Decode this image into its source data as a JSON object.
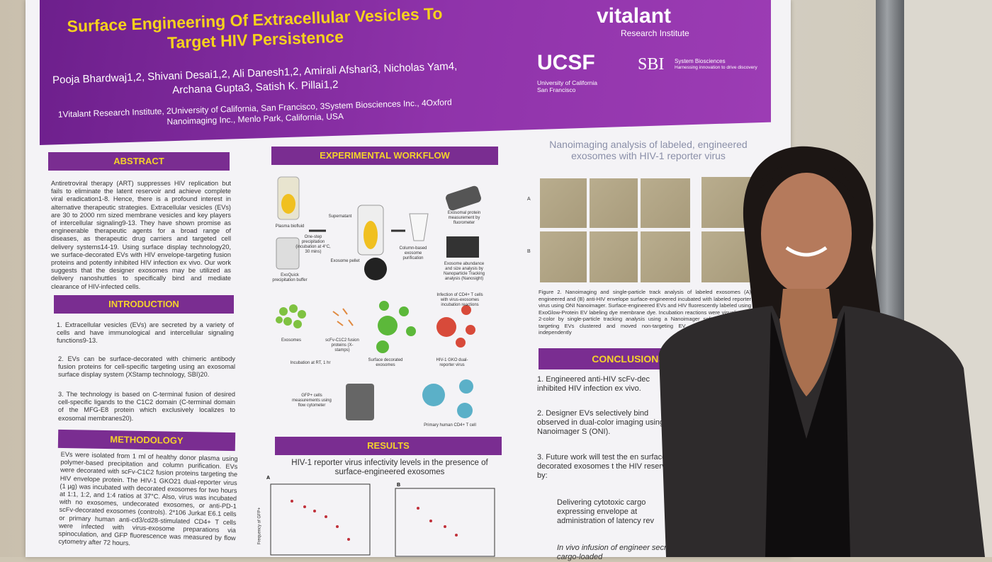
{
  "header": {
    "title": "Surface Engineering Of Extracellular Vesicles To Target HIV Persistence",
    "authors": "Pooja Bhardwaj1,2, Shivani Desai1,2, Ali Danesh1,2, Amirali Afshari3, Nicholas Yam4, Archana Gupta3, Satish K. Pillai1,2",
    "affiliations": "1Vitalant Research Institute, 2University of California, San Francisco, 3System Biosciences Inc., 4Oxford Nanoimaging Inc., Menlo Park, California, USA",
    "logos": [
      "vitalant",
      "Research Institute",
      "UCSF",
      "University of California San Francisco",
      "SBI",
      "System Biosciences",
      "Harnessing innovation to drive discovery"
    ]
  },
  "abstract": {
    "heading": "ABSTRACT",
    "text": "Antiretroviral therapy (ART) suppresses HIV replication but fails to eliminate the latent reservoir and achieve complete viral eradication1-8. Hence, there is a profound interest in alternative therapeutic strategies. Extracellular vesicles (EVs) are 30 to 2000 nm sized membrane vesicles and key players of intercellular signaling9-13. They have shown promise as engineerable therapeutic agents for a broad range of diseases, as therapeutic drug carriers and targeted cell delivery systems14-19. Using surface display technology20, we surface-decorated EVs with HIV envelope-targeting fusion proteins and potently inhibited HIV infection ex vivo. Our work suggests that the designer exosomes may be utilized as delivery nanoshuttles to specifically bind and mediate clearance of HIV-infected cells."
  },
  "introduction": {
    "heading": "INTRODUCTION",
    "items": [
      "1. Extracellular vesicles (EVs) are secreted by a variety of cells and have immunological and intercellular signaling functions9-13.",
      "2. EVs can be surface-decorated with chimeric antibody fusion proteins for cell-specific targeting using an exosomal surface display system (XStamp technology, SBI)20.",
      "3. The technology is based on C-terminal fusion of desired cell-specific ligands to the C1C2 domain (C-terminal domain of the MFG-E8 protein which exclusively localizes to exosomal membranes20)."
    ]
  },
  "methodology": {
    "heading": "METHODOLOGY",
    "text": "EVs were isolated from 1 ml of healthy donor plasma using polymer-based precipitation and column purification. EVs were decorated with scFv-C1C2 fusion proteins targeting the HIV envelope protein. The HIV-1 GKO21 dual-reporter virus (1 µg) was incubated with decorated exosomes for two hours at 1:1, 1:2, and 1:4 ratios at 37°C. Also, virus was incubated with no exosomes, undecorated exosomes, or anti-PD-1 scFv-decorated exosomes (controls). 2*106 Jurkat E6.1 cells or primary human anti-cd3/cd28-stimulated CD4+ T cells were infected with virus-exosome preparations via spinoculation, and GFP fluorescence was measured by flow cytometry after 72 hours."
  },
  "workflow": {
    "heading": "EXPERIMENTAL WORKFLOW",
    "labels": [
      "Plasma biofluid",
      "ExoQuick precipitation buffer",
      "One-step precipitation (incubation at 4°C, 30 mins)",
      "Supernatant",
      "Exosome pellet",
      "Column-based exosome purification",
      "Exosomal protein measurement by fluorometer",
      "Exosome abundance and size analysis by Nanoparticle Tracking analysis (Nanosight)",
      "Exosomes",
      "scFv-C1C2 fusion proteins (X-stamps)",
      "Surface decorated exosomes",
      "Infection of CD4+ T cells with virus-exosomes incubation reactions",
      "HIV-1 GKO dual-reporter virus",
      "Incubation at RT, 1 hr",
      "GFP+ cells measurements using flow cytometer",
      "Primary human CD4+ T cell"
    ]
  },
  "results": {
    "heading": "RESULTS",
    "chart_title": "HIV-1 reporter virus infectivity levels in the presence of surface-engineered exosomes",
    "panels": [
      "A",
      "B"
    ],
    "y_label": "Frequency of GFP+"
  },
  "nanoimaging": {
    "title": "Nanoimaging analysis of labeled, engineered exosomes with HIV-1 reporter virus",
    "rows": [
      "A",
      "B"
    ],
    "caption": "Figure 2. Nanoimaging and single-particle track analysis of labeled exosomes (A) engineered and (B) anti-HIV envelope surface-engineered incubated with labeled reporter virus using ONI Nanoimager. Surface-engineered EVs and HIV fluorescently labeled using ExoGlow-Protein EV labeling dye membrane dye. Incubation reactions were visualized in 2-color by single-particle tracking analysis using a Nanoimager software. The HIV-targeting EVs clustered and moved non-targeting EV controls which tracked independently"
  },
  "conclusions": {
    "heading": "CONCLUSIONS AND F",
    "items": [
      "1. Engineered anti-HIV scFv-dec inhibited HIV infection ex vivo.",
      "2. Designer EVs selectively bind observed in dual-color imaging using a Nanoimager S (ONI).",
      "3. Future work will test the en surface decorated exosomes t the HIV reservoir by:",
      "Delivering cytotoxic cargo expressing envelope at administration of latency rev",
      "In vivo infusion of engineer secrete cargo-loaded"
    ]
  }
}
